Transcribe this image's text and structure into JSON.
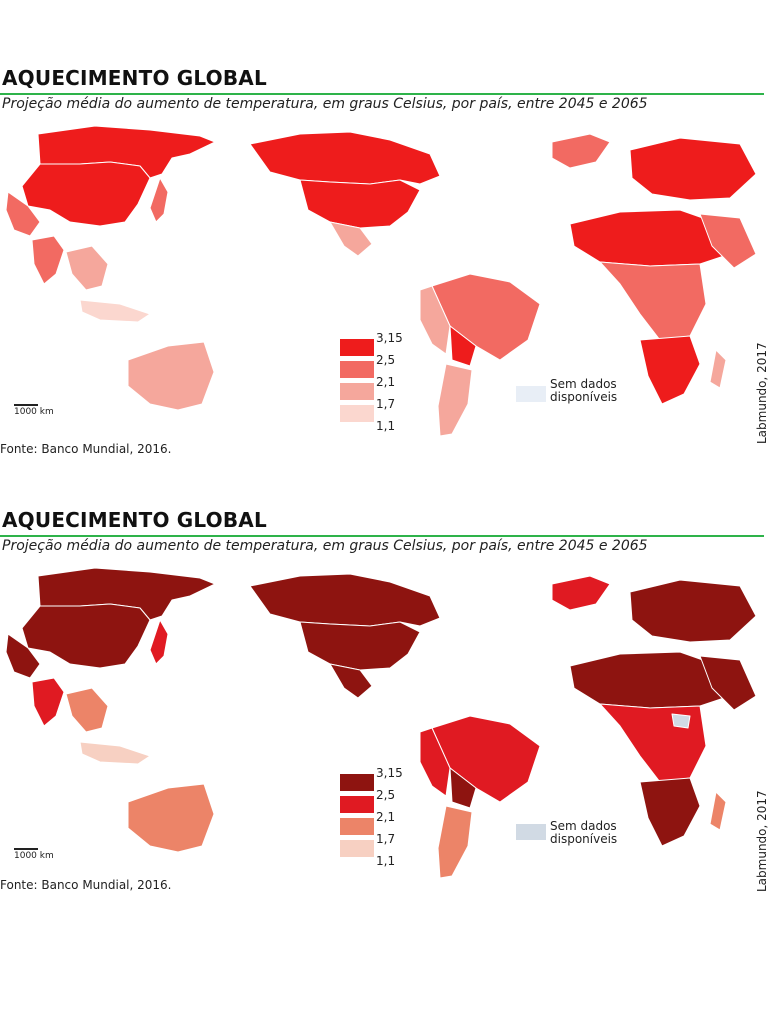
{
  "maps": [
    {
      "title": "AQUECIMENTO GLOBAL",
      "subtitle": "Projeção média do aumento de temperatura, em graus Celsius, por país, entre 2045 e 2065",
      "legend_values": [
        "3,15",
        "2,5",
        "2,1",
        "1,7",
        "1,1"
      ],
      "legend_colors": [
        "#ee1c1c",
        "#f26a62",
        "#f5a79c",
        "#fbd7cf"
      ],
      "no_data_label": "Sem dados disponíveis",
      "no_data_color": "#e8eef6",
      "scale_label": "1000 km",
      "source": "Fonte: Banco Mundial, 2016.",
      "credit": "Labmundo, 2017"
    },
    {
      "title": "AQUECIMENTO GLOBAL",
      "subtitle": "Projeção média do aumento de temperatura, em graus Celsius, por país, entre 2045 e 2065",
      "legend_values": [
        "3,15",
        "2,5",
        "2,1",
        "1,7",
        "1,1"
      ],
      "legend_colors": [
        "#8e1410",
        "#e01a22",
        "#ec8468",
        "#f7d0c2"
      ],
      "no_data_label": "Sem dados disponíveis",
      "no_data_color": "#d1dae4",
      "scale_label": "1000 km",
      "source": "Fonte: Banco Mundial, 2016.",
      "credit": "Labmundo, 2017"
    }
  ]
}
